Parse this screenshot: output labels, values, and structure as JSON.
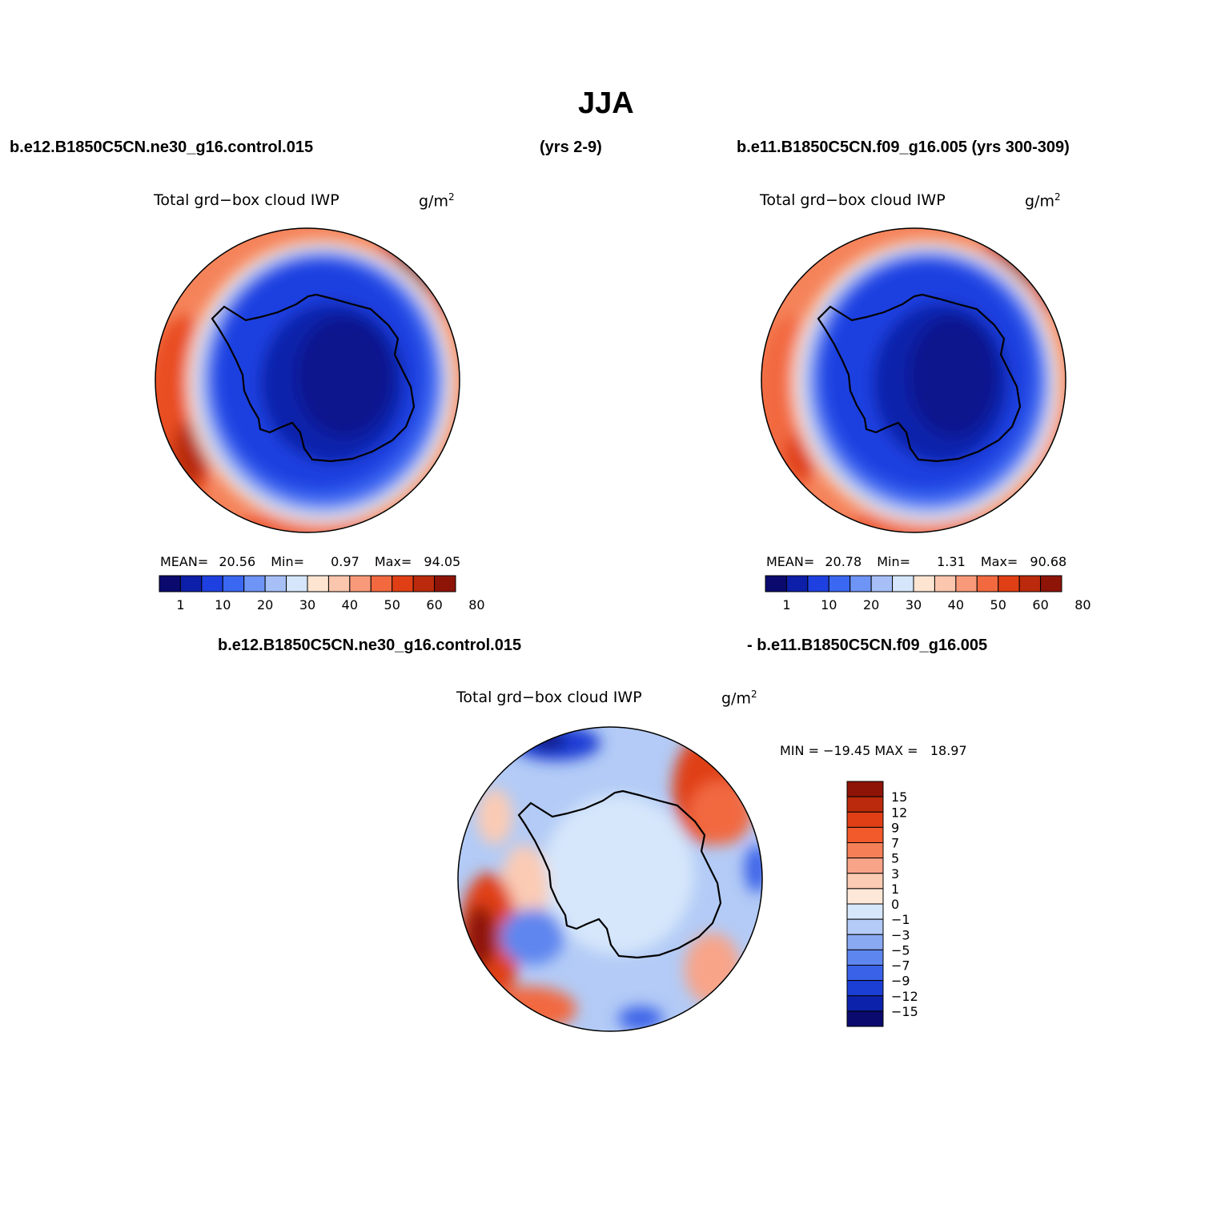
{
  "title": "JJA",
  "header": {
    "left_case": "b.e12.B1850C5CN.ne30_g16.control.015",
    "left_years": "(yrs 2-9)",
    "right_case": "b.e11.B1850C5CN.f09_g16.005 (yrs 300-309)",
    "diff_case_a": "b.e12.B1850C5CN.ne30_g16.control.015",
    "diff_case_b": "- b.e11.B1850C5CN.f09_g16.005"
  },
  "panels": [
    {
      "variable": "Total grd−box cloud IWP",
      "units_base": "g/m",
      "units_exp": "2",
      "mean_label": "MEAN=",
      "mean": "20.56",
      "min_label": "Min=",
      "min": "0.97",
      "max_label": "Max=",
      "max": "94.05"
    },
    {
      "variable": "Total grd−box cloud IWP",
      "units_base": "g/m",
      "units_exp": "2",
      "mean_label": "MEAN=",
      "mean": "20.78",
      "min_label": "Min=",
      "min": "1.31",
      "max_label": "Max=",
      "max": "90.68"
    },
    {
      "variable": "Total grd−box cloud IWP",
      "units_base": "g/m",
      "units_exp": "2",
      "minmax_text": "MIN = −19.45 MAX =   18.97"
    }
  ],
  "colorbar_main": {
    "colors": [
      "#0a0a6e",
      "#0d1fa8",
      "#1f40e0",
      "#3a68f2",
      "#6e95f5",
      "#a6c0f7",
      "#d5e6fb",
      "#fde5d2",
      "#fbc6ae",
      "#f89a7a",
      "#f2693f",
      "#e03f16",
      "#bb2a0c",
      "#8e1408"
    ],
    "tick_labels": [
      "1",
      "10",
      "20",
      "30",
      "40",
      "50",
      "60",
      "80"
    ]
  },
  "colorbar_diff": {
    "colors": [
      "#8e1408",
      "#bb2a0c",
      "#e03f16",
      "#f25a2c",
      "#f58058",
      "#f8a489",
      "#fbcbb4",
      "#fde7d8",
      "#d6e7fb",
      "#b3cbf6",
      "#8aa9f3",
      "#5e86ef",
      "#3a62e8",
      "#1b3ed5",
      "#0d22ab",
      "#0a0a6e"
    ],
    "tick_labels": [
      "15",
      "12",
      "9",
      "7",
      "5",
      "3",
      "1",
      "0",
      "−1",
      "−3",
      "−5",
      "−7",
      "−9",
      "−12",
      "−15"
    ]
  }
}
